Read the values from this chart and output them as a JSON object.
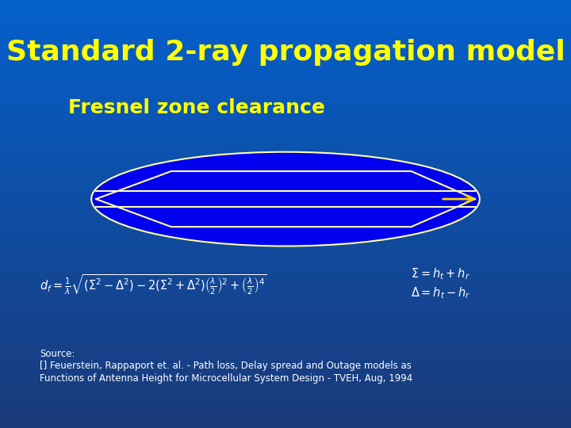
{
  "title": "Standard 2-ray propagation model",
  "subtitle": "Fresnel zone clearance",
  "title_color": "#FFFF00",
  "subtitle_color": "#FFFF00",
  "title_fontsize": 26,
  "subtitle_fontsize": 18,
  "ellipse_color": "#0000EE",
  "ellipse_edge_color": "#FFFFAA",
  "line_color": "#FFFFAA",
  "arrow_color": "#FFD700",
  "formula_color": "white",
  "source_text_color": "white",
  "source_line1": "Source:",
  "source_line2": "[] Feuerstein, Rappaport et. al. - Path loss, Delay spread and Outage models as",
  "source_line3": "Functions of Antenna Height for Microcellular System Design - TVEH, Aug, 1994",
  "formula_main": "$d_f = \\frac{1}{\\lambda}\\sqrt{\\left(\\Sigma^2 - \\Delta^2\\right) - 2\\left(\\Sigma^2 + \\Delta^2\\right)\\left(\\frac{\\lambda}{2}\\right)^2 + \\left(\\frac{\\lambda}{2}\\right)^4}$",
  "formula_right1": "$\\Sigma = h_t + h_r$",
  "formula_right2": "$\\Delta = h_t - h_r$"
}
